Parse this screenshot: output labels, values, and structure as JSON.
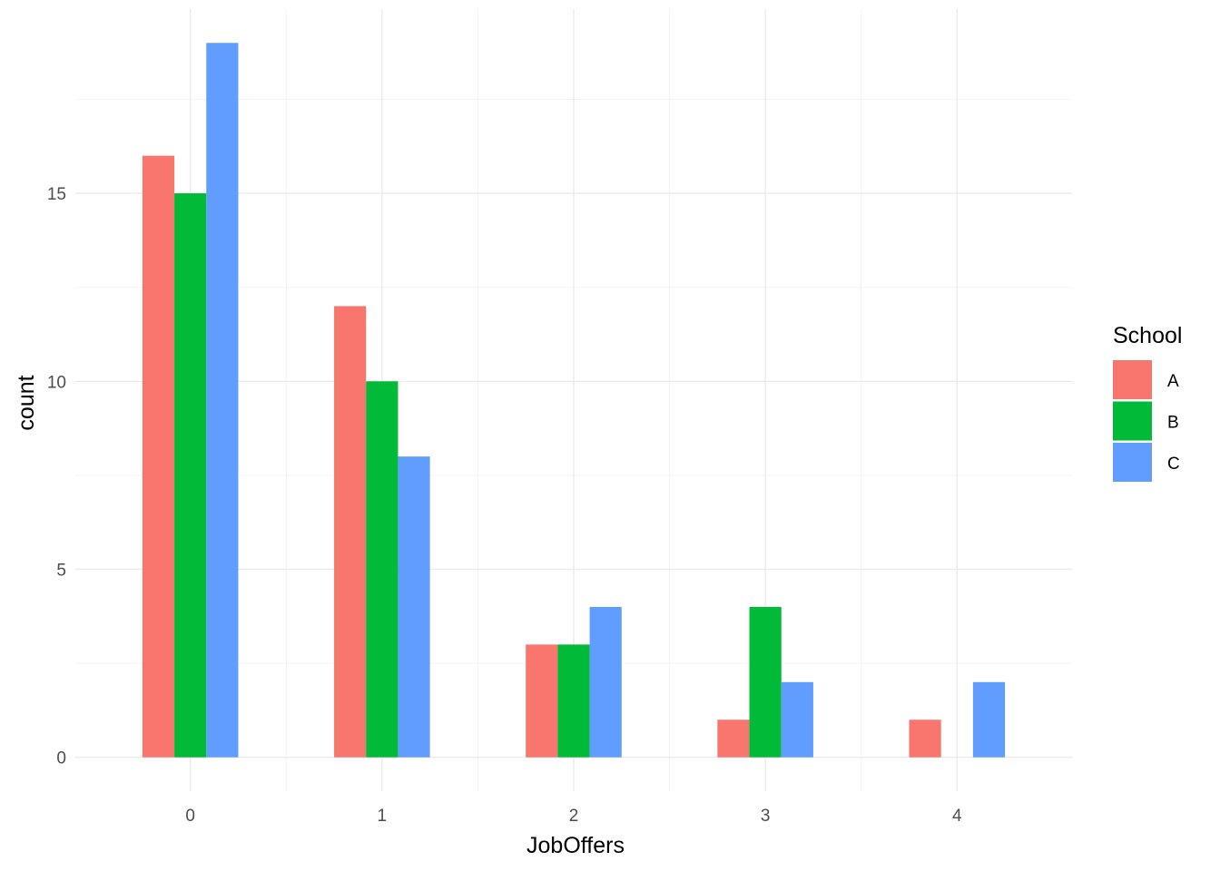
{
  "chart_data": {
    "type": "bar",
    "title": "",
    "xlabel": "JobOffers",
    "ylabel": "count",
    "categories": [
      "0",
      "1",
      "2",
      "3",
      "4"
    ],
    "yticks": [
      0,
      5,
      10,
      15
    ],
    "ylim": [
      -0.9,
      19.9
    ],
    "grid": true,
    "legend": {
      "title": "School",
      "placement": "right"
    },
    "series": [
      {
        "name": "A",
        "color": "#F8766D",
        "values": [
          16,
          12,
          3,
          1,
          1
        ]
      },
      {
        "name": "B",
        "color": "#00BA38",
        "values": [
          15,
          10,
          3,
          4,
          0
        ]
      },
      {
        "name": "C",
        "color": "#619CFF",
        "values": [
          19,
          8,
          4,
          2,
          2
        ]
      }
    ]
  }
}
